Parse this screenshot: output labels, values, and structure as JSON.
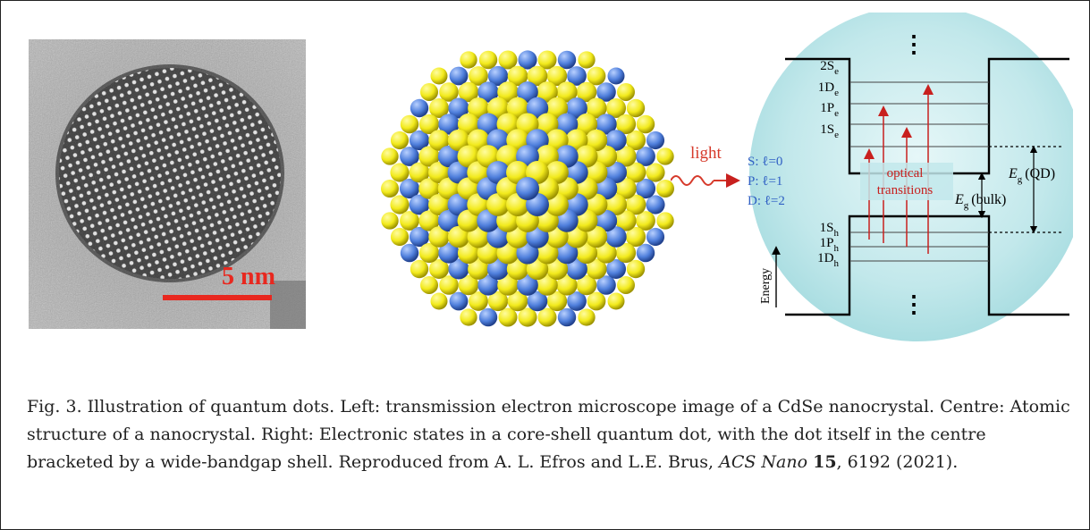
{
  "figure": {
    "tem": {
      "scale_bar_label": "5 nm",
      "scale_bar_color": "#e8281f"
    },
    "sphere": {
      "atom_colors": [
        "#f2ea1c",
        "#4f7fdc"
      ]
    },
    "levels": {
      "light_label": "light",
      "electron_levels": [
        "2S",
        "1D",
        "1P",
        "1S"
      ],
      "electron_subscript": "e",
      "hole_levels": [
        "1S",
        "1P",
        "1D"
      ],
      "hole_subscript": "h",
      "angular_momentum": [
        "S: ℓ=0",
        "P: ℓ=1",
        "D: ℓ=2"
      ],
      "optical_transitions": [
        "optical",
        "transitions"
      ],
      "eg_bulk_symbol": "E",
      "eg_sub": "g",
      "eg_bulk_tag": "(bulk)",
      "eg_qd_tag": "(QD)",
      "energy_label": "Energy",
      "ellipsis": "⋮",
      "colors": {
        "light": "#d63a2b",
        "transition": "#c8201e",
        "label_blue": "#2f5fc4",
        "bg_sphere": "#bfe7ea"
      }
    }
  },
  "caption": {
    "part1": "Fig. 3. Illustration of quantum dots. Left: transmission electron microscope image of a CdSe nanocrystal. Centre: Atomic structure of a nanocrystal. Right: Electronic states in a core-shell quantum dot, with the dot itself in the centre bracketed by a wide-bandgap shell. Reproduced from A. L. Efros and L.E. Brus, ",
    "journal": "ACS Nano",
    "volume": "15",
    "rest": ", 6192 (2021)."
  }
}
